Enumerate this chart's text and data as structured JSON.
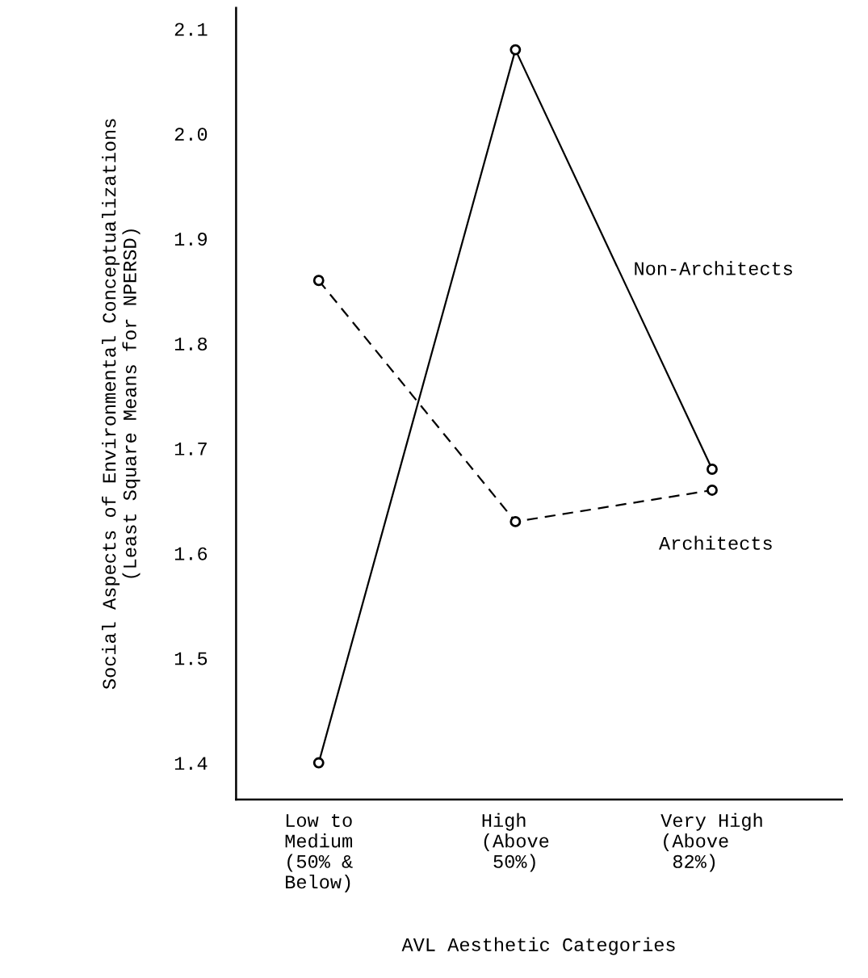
{
  "chart_data": {
    "type": "line",
    "xlabel": "AVL Aesthetic Categories",
    "ylabel": "Social Aspects of Environmental Conceptualizations\n(Least Square Means for NPERSD)",
    "categories": [
      "Low to\nMedium\n(50% &\nBelow)",
      "High\n(Above\n 50%)",
      "Very High\n(Above\n 82%)"
    ],
    "series": [
      {
        "name": "Non-Architects",
        "color": "#000000",
        "values": [
          1.4,
          2.08,
          1.68
        ],
        "line_style": "solid"
      },
      {
        "name": "Architects",
        "color": "#000000",
        "values": [
          1.86,
          1.63,
          1.66
        ],
        "line_style": "dashed"
      }
    ],
    "ylim": [
      1.365,
      2.12
    ],
    "yticks": [
      1.4,
      1.5,
      1.6,
      1.7,
      1.8,
      1.9,
      {
        "value": 2.0,
        "label": "2.0"
      },
      2.1
    ],
    "marker": "circle",
    "grid": false,
    "legend": false
  }
}
